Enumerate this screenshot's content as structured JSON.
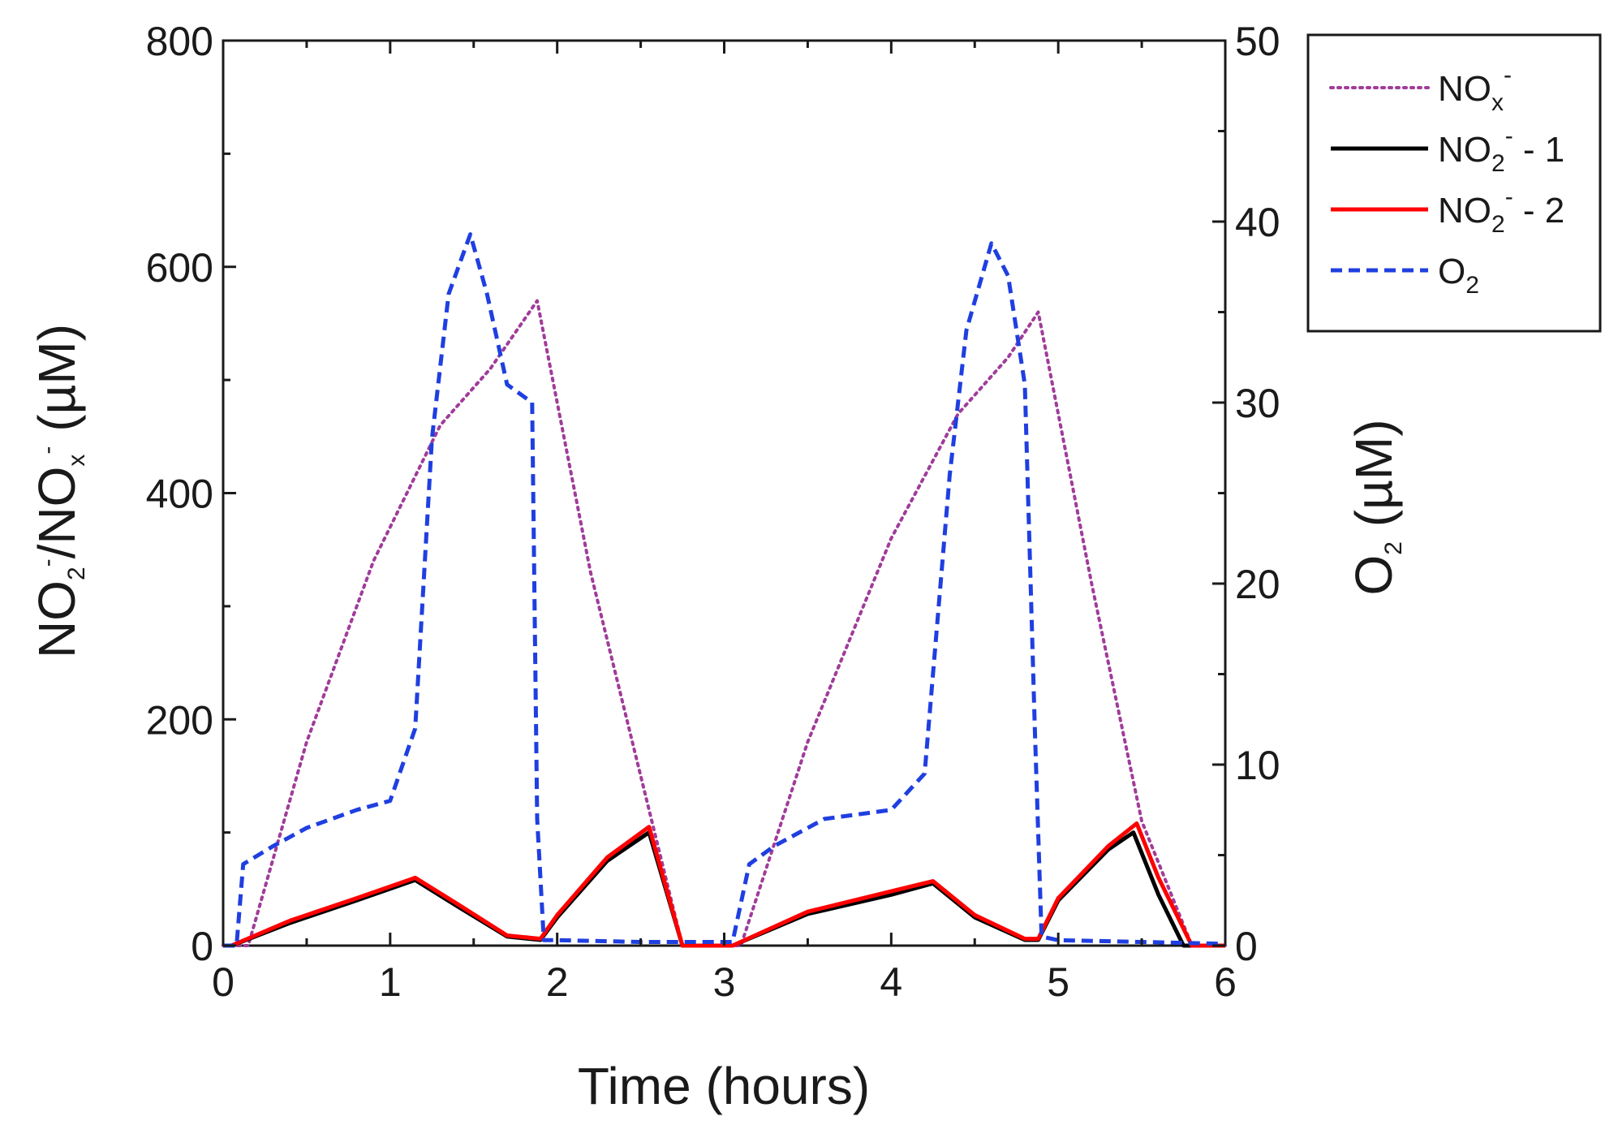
{
  "chart_data": {
    "type": "line",
    "xlabel": "Time (hours)",
    "ylabel": {
      "pre": "NO",
      "sub1": "2",
      "sup1": "-",
      "mid": "/NO",
      "sub2": "x",
      "sup2": "-",
      "post": " (µM)"
    },
    "y2label": {
      "pre": "O",
      "sub": "2",
      "post": " (µM)"
    },
    "xlim": [
      0,
      6
    ],
    "ylim": [
      0,
      800
    ],
    "y2lim": [
      0,
      50
    ],
    "xticks": [
      "0",
      "1",
      "2",
      "3",
      "4",
      "5",
      "6"
    ],
    "yticks": [
      "0",
      "200",
      "400",
      "600",
      "800"
    ],
    "y2ticks": [
      "0",
      "10",
      "20",
      "30",
      "40",
      "50"
    ],
    "legend_position": "top-right",
    "series": [
      {
        "name": "NOx-",
        "legend": {
          "main": "NO",
          "sub": "x",
          "sup": "-",
          "tail": ""
        },
        "color": "#a03c9a",
        "style": "dotted",
        "axis": "left",
        "x": [
          0.0,
          0.15,
          0.5,
          0.9,
          1.3,
          1.6,
          1.88,
          2.2,
          2.5,
          2.75,
          3.0,
          3.1,
          3.5,
          4.0,
          4.4,
          4.7,
          4.88,
          5.2,
          5.5,
          5.8,
          6.0
        ],
        "y": [
          0,
          0,
          180,
          340,
          460,
          510,
          570,
          330,
          150,
          0,
          0,
          0,
          180,
          360,
          470,
          520,
          560,
          320,
          110,
          0,
          0
        ]
      },
      {
        "name": "NO2- - 1",
        "legend": {
          "main": "NO",
          "sub": "2",
          "sup": "-",
          "tail": " - 1"
        },
        "color": "#000000",
        "style": "solid",
        "axis": "left",
        "x": [
          0.0,
          0.05,
          0.4,
          0.8,
          1.15,
          1.4,
          1.7,
          1.9,
          2.0,
          2.3,
          2.55,
          2.75,
          3.0,
          3.05,
          3.5,
          4.0,
          4.25,
          4.5,
          4.8,
          4.88,
          5.0,
          5.3,
          5.45,
          5.6,
          5.75,
          6.0
        ],
        "y": [
          0,
          0,
          20,
          40,
          58,
          35,
          8,
          5,
          25,
          75,
          100,
          0,
          0,
          0,
          28,
          45,
          55,
          25,
          5,
          5,
          40,
          85,
          100,
          45,
          0,
          0
        ]
      },
      {
        "name": "NO2- - 2",
        "legend": {
          "main": "NO",
          "sub": "2",
          "sup": "-",
          "tail": " - 2"
        },
        "color": "#ff0000",
        "style": "solid",
        "axis": "left",
        "x": [
          0.0,
          0.05,
          0.4,
          0.8,
          1.15,
          1.4,
          1.7,
          1.9,
          2.0,
          2.3,
          2.55,
          2.75,
          3.0,
          3.05,
          3.5,
          4.0,
          4.25,
          4.5,
          4.8,
          4.88,
          5.0,
          5.3,
          5.47,
          5.6,
          5.8,
          6.0
        ],
        "y": [
          0,
          0,
          22,
          42,
          60,
          37,
          9,
          6,
          27,
          78,
          105,
          0,
          0,
          0,
          30,
          48,
          57,
          27,
          6,
          6,
          42,
          88,
          108,
          60,
          0,
          0
        ]
      },
      {
        "name": "O2",
        "legend": {
          "main": "O",
          "sub": "2",
          "sup": "",
          "tail": ""
        },
        "color": "#1f3fe0",
        "style": "dashed",
        "axis": "right",
        "x": [
          0.0,
          0.08,
          0.12,
          0.3,
          0.5,
          0.8,
          1.0,
          1.15,
          1.25,
          1.35,
          1.48,
          1.58,
          1.7,
          1.85,
          1.88,
          1.92,
          2.0,
          2.5,
          3.0,
          3.05,
          3.15,
          3.3,
          3.6,
          4.0,
          4.2,
          4.35,
          4.45,
          4.6,
          4.7,
          4.8,
          4.86,
          4.9,
          5.0,
          5.5,
          6.0
        ],
        "y": [
          0,
          0,
          4.5,
          5.5,
          6.5,
          7.5,
          8,
          12,
          28,
          36,
          39.3,
          36,
          31,
          30,
          7,
          0.3,
          0.3,
          0.2,
          0.2,
          0.2,
          4.5,
          5.5,
          7,
          7.5,
          9.5,
          26,
          34,
          38.8,
          37,
          31,
          12,
          0.5,
          0.3,
          0.2,
          0.1
        ]
      }
    ]
  }
}
